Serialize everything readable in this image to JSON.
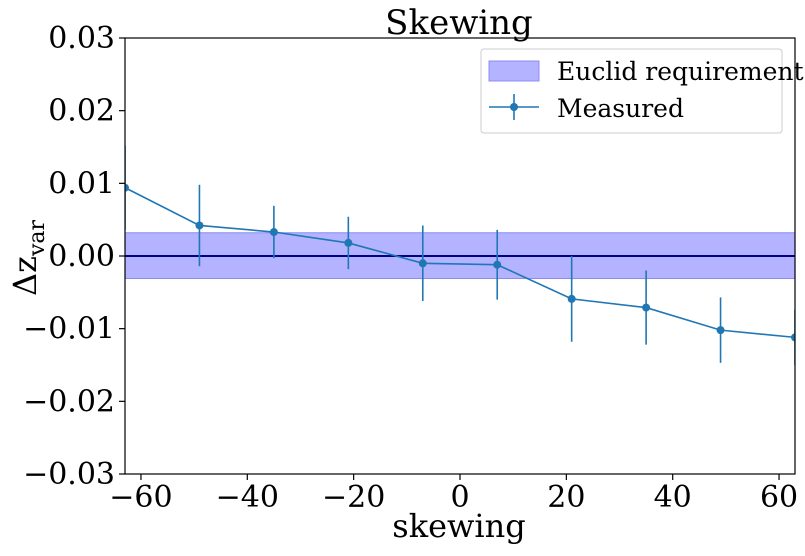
{
  "chart_data": {
    "type": "line",
    "title": "Skewing",
    "xlabel": "skewing",
    "ylabel": "Δz",
    "ylabel_subscript": "var",
    "xlim": [
      -63,
      63
    ],
    "ylim": [
      -0.03,
      0.03
    ],
    "xticks": [
      -60,
      -40,
      -20,
      0,
      20,
      40,
      60
    ],
    "yticks": [
      0.03,
      0.02,
      0.01,
      0.0,
      -0.01,
      -0.02,
      -0.03
    ],
    "xtick_labels": [
      "−60",
      "−40",
      "−20",
      "0",
      "20",
      "40",
      "60"
    ],
    "ytick_labels": [
      "0.03",
      "0.02",
      "0.01",
      "0.00",
      "−0.01",
      "−0.02",
      "−0.03"
    ],
    "grid": false,
    "legend_position": "top-right",
    "band": {
      "name": "Euclid requirement",
      "ymin": -0.0031,
      "ymax": 0.0032,
      "color": "#b3b3ff",
      "edge_color": "#8c8cf0"
    },
    "reference_line": {
      "y": 0.0,
      "color": "#00008b"
    },
    "series": [
      {
        "name": "Measured",
        "color": "#1f77b4",
        "x": [
          -63,
          -49,
          -35,
          -21,
          -7,
          7,
          21,
          35,
          49,
          63
        ],
        "y": [
          0.0094,
          0.0042,
          0.0033,
          0.0018,
          -0.001,
          -0.0012,
          -0.0059,
          -0.0071,
          -0.0102,
          -0.0112
        ],
        "yerr": [
          0.0058,
          0.0056,
          0.0036,
          0.0036,
          0.0052,
          0.0048,
          0.0059,
          0.0051,
          0.0045,
          0.0038
        ]
      }
    ]
  }
}
